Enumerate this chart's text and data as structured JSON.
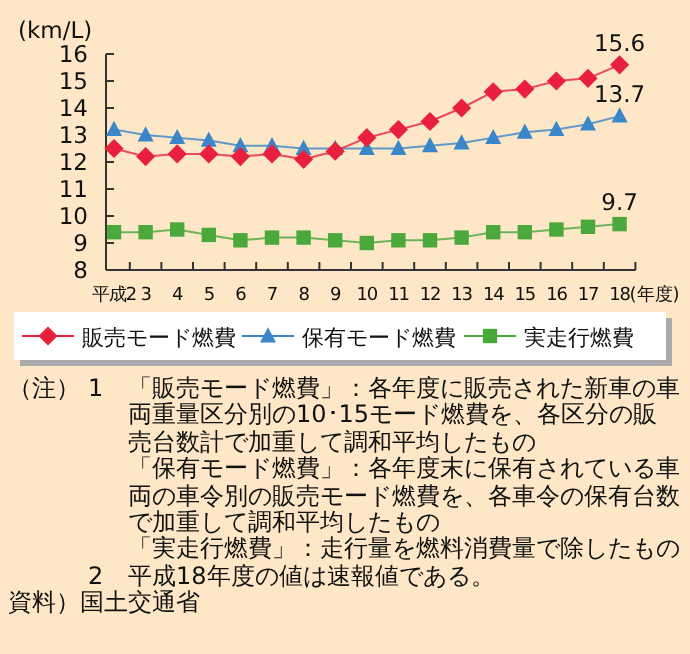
{
  "chart_data": {
    "type": "line",
    "ylabel": "(km/L)",
    "xlabel": "(年度)",
    "categories": [
      "平成2",
      "3",
      "4",
      "5",
      "6",
      "7",
      "8",
      "9",
      "10",
      "11",
      "12",
      "13",
      "14",
      "15",
      "16",
      "17",
      "18"
    ],
    "ylim": [
      8,
      16
    ],
    "yticks": [
      8,
      9,
      10,
      11,
      12,
      13,
      14,
      15,
      16
    ],
    "grid": false,
    "legend": "bottom",
    "series": [
      {
        "name": "販売モード燃費",
        "color": "#e8203c",
        "marker": "diamond",
        "values": [
          12.5,
          12.2,
          12.3,
          12.3,
          12.2,
          12.3,
          12.1,
          12.4,
          12.9,
          13.2,
          13.5,
          14.0,
          14.6,
          14.7,
          15.0,
          15.1,
          15.6
        ],
        "value_labels": [
          null,
          null,
          null,
          null,
          null,
          null,
          null,
          null,
          null,
          null,
          null,
          null,
          null,
          null,
          null,
          null,
          "15.6"
        ]
      },
      {
        "name": "保有モード燃費",
        "color": "#3a86c8",
        "marker": "triangle",
        "values": [
          13.2,
          13.0,
          12.9,
          12.8,
          12.6,
          12.6,
          12.5,
          12.5,
          12.5,
          12.5,
          12.6,
          12.7,
          12.9,
          13.1,
          13.2,
          13.4,
          13.7
        ],
        "value_labels": [
          null,
          null,
          null,
          null,
          null,
          null,
          null,
          null,
          null,
          null,
          null,
          null,
          null,
          null,
          null,
          null,
          "13.7"
        ]
      },
      {
        "name": "実走行燃費",
        "color": "#4aa83c",
        "marker": "square",
        "values": [
          9.4,
          9.4,
          9.5,
          9.3,
          9.1,
          9.2,
          9.2,
          9.1,
          9.0,
          9.1,
          9.1,
          9.2,
          9.4,
          9.4,
          9.5,
          9.6,
          9.7
        ],
        "value_labels": [
          null,
          null,
          null,
          null,
          null,
          null,
          null,
          null,
          null,
          null,
          null,
          null,
          null,
          null,
          null,
          null,
          "9.7"
        ]
      }
    ],
    "annotations": [
      "（注）",
      "1",
      "「販売モード燃費」：各年度に販売された新車の車両重量区分別の10･15モード燃費を、各区分の販売台数計で加重して調和平均したもの",
      "「保有モード燃費」：各年度末に保有されている車両の車令別の販売モード燃費を、各車令の保有台数で加重して調和平均したもの",
      "「実走行燃費」：走行量を燃料消費量で除したもの",
      "2",
      "平成18年度の値は速報値である。",
      "資料）国土交通省"
    ]
  }
}
